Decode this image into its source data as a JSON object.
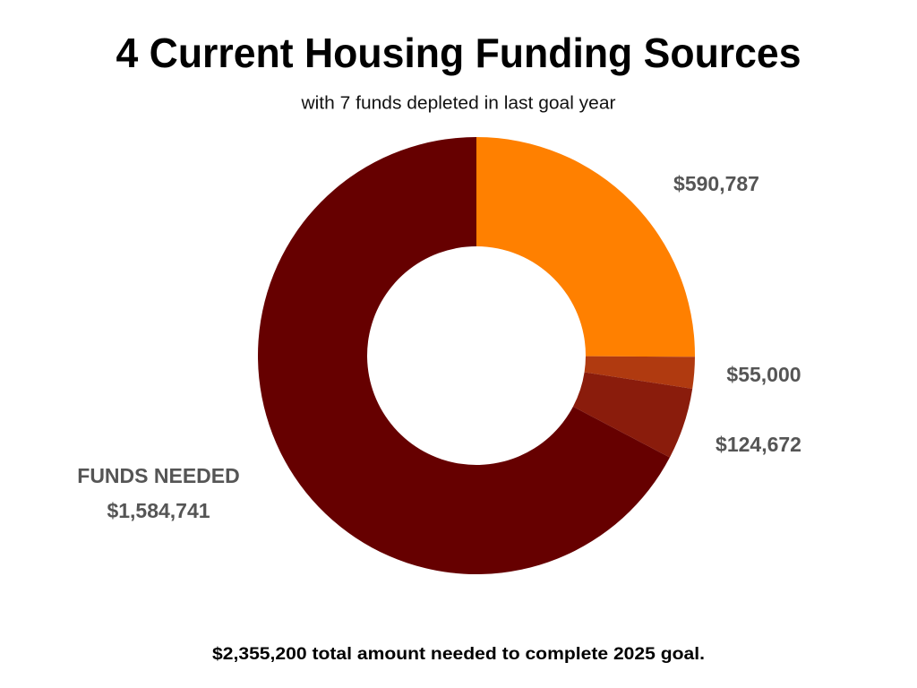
{
  "chart_data": {
    "type": "donut",
    "title": "4 Current Housing Funding Sources",
    "subtitle": "with 7 funds depleted in last goal year",
    "categories": [
      null,
      null,
      null,
      "FUNDS NEEDED"
    ],
    "values": [
      590787,
      55000,
      124672,
      1584741
    ],
    "value_labels": [
      "$590,787",
      "$55,000",
      "$124,672",
      "$1,584,741"
    ],
    "colors": [
      "#ff8000",
      "#b03a10",
      "#8a1c0c",
      "#660000"
    ],
    "footer": "$2,355,200 total amount needed to complete 2025 goal."
  }
}
